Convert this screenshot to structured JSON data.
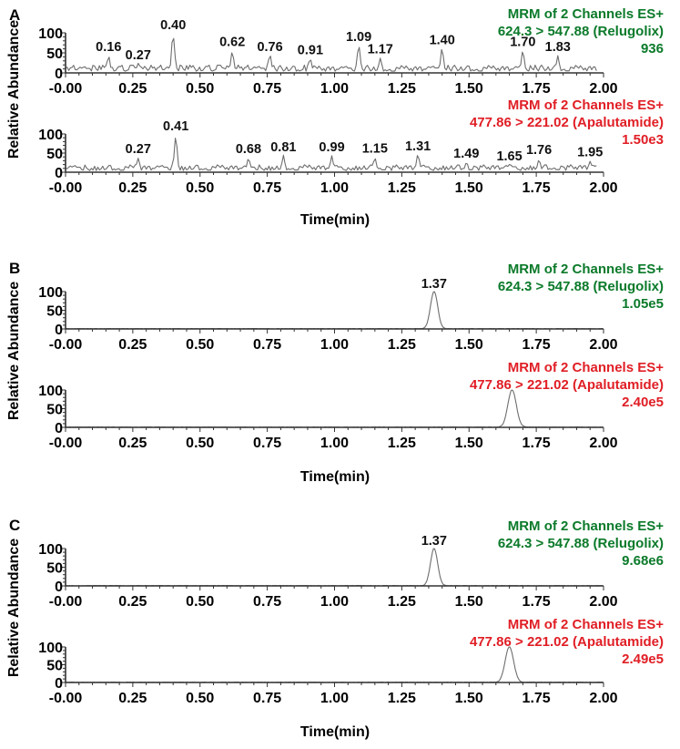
{
  "figure": {
    "y_axis_title": "Relative Abundance",
    "x_axis_title": "Time(min)",
    "x_ticks": [
      "-0.00",
      "0.25",
      "0.50",
      "0.75",
      "1.00",
      "1.25",
      "1.50",
      "1.75",
      "2.00"
    ],
    "y_ticks": [
      "100",
      "50",
      "0"
    ],
    "colors": {
      "relugolix": "#0b7a2a",
      "apalutamide": "#e01e25",
      "trace": "#6e6e6e",
      "axis": "#333333"
    }
  },
  "panels": [
    {
      "letter": "A",
      "channels": [
        {
          "header": [
            "MRM of 2 Channels ES+",
            "624.3 > 547.88 (Relugolix)",
            "936"
          ],
          "color_key": "relugolix",
          "peak_labels": [
            "0.16",
            "0.27",
            "0.40",
            "0.62",
            "0.76",
            "0.91",
            "1.09",
            "1.17",
            "1.40",
            "1.70",
            "1.83"
          ]
        },
        {
          "header": [
            "MRM of 2 Channels ES+",
            "477.86 > 221.02 (Apalutamide)",
            "1.50e3"
          ],
          "color_key": "apalutamide",
          "peak_labels": [
            "0.27",
            "0.41",
            "0.68",
            "0.81",
            "0.99",
            "1.15",
            "1.31",
            "1.49",
            "1.65",
            "1.76",
            "1.95"
          ]
        }
      ]
    },
    {
      "letter": "B",
      "channels": [
        {
          "header": [
            "MRM of 2 Channels ES+",
            "624.3 > 547.88 (Relugolix)",
            "1.05e5"
          ],
          "color_key": "relugolix",
          "peak_labels": [
            "1.37"
          ]
        },
        {
          "header": [
            "MRM of 2 Channels ES+",
            "477.86 > 221.02 (Apalutamide)",
            "2.40e5"
          ],
          "color_key": "apalutamide",
          "peak_labels": []
        }
      ]
    },
    {
      "letter": "C",
      "channels": [
        {
          "header": [
            "MRM of 2 Channels ES+",
            "624.3 > 547.88 (Relugolix)",
            "9.68e6"
          ],
          "color_key": "relugolix",
          "peak_labels": [
            "1.37"
          ]
        },
        {
          "header": [
            "MRM of 2 Channels ES+",
            "477.86 > 221.02 (Apalutamide)",
            "2.49e5"
          ],
          "color_key": "apalutamide",
          "peak_labels": []
        }
      ]
    }
  ],
  "chart_data": [
    {
      "type": "line",
      "title": "A - Relugolix channel (MRM 624.3 > 547.88), intensity 936",
      "xlabel": "Time(min)",
      "ylabel": "Relative Abundance",
      "xlim": [
        0,
        2.0
      ],
      "ylim": [
        0,
        100
      ],
      "grid": false,
      "kind": "noise baseline",
      "labeled_peaks": [
        {
          "x": 0.16,
          "y": 45
        },
        {
          "x": 0.27,
          "y": 25
        },
        {
          "x": 0.4,
          "y": 100
        },
        {
          "x": 0.62,
          "y": 58
        },
        {
          "x": 0.76,
          "y": 45
        },
        {
          "x": 0.91,
          "y": 38
        },
        {
          "x": 1.09,
          "y": 70
        },
        {
          "x": 1.17,
          "y": 40
        },
        {
          "x": 1.4,
          "y": 62
        },
        {
          "x": 1.7,
          "y": 58
        },
        {
          "x": 1.83,
          "y": 45
        }
      ]
    },
    {
      "type": "line",
      "title": "A - Apalutamide channel (MRM 477.86 > 221.02), intensity 1.50e3",
      "xlabel": "Time(min)",
      "ylabel": "Relative Abundance",
      "xlim": [
        0,
        2.0
      ],
      "ylim": [
        0,
        100
      ],
      "grid": false,
      "kind": "noise baseline",
      "labeled_peaks": [
        {
          "x": 0.27,
          "y": 40
        },
        {
          "x": 0.41,
          "y": 100
        },
        {
          "x": 0.68,
          "y": 40
        },
        {
          "x": 0.81,
          "y": 45
        },
        {
          "x": 0.99,
          "y": 45
        },
        {
          "x": 1.15,
          "y": 42
        },
        {
          "x": 1.31,
          "y": 48
        },
        {
          "x": 1.49,
          "y": 28
        },
        {
          "x": 1.65,
          "y": 22
        },
        {
          "x": 1.76,
          "y": 38
        },
        {
          "x": 1.95,
          "y": 32
        }
      ]
    },
    {
      "type": "line",
      "title": "B - Relugolix channel (MRM 624.3 > 547.88), intensity 1.05e5",
      "xlabel": "Time(min)",
      "ylabel": "Relative Abundance",
      "xlim": [
        0,
        2.0
      ],
      "ylim": [
        0,
        100
      ],
      "grid": false,
      "peaks": [
        {
          "x": 1.37,
          "y": 100,
          "width_min": 0.06
        }
      ]
    },
    {
      "type": "line",
      "title": "B - Apalutamide channel (MRM 477.86 > 221.02), intensity 2.40e5",
      "xlabel": "Time(min)",
      "ylabel": "Relative Abundance",
      "xlim": [
        0,
        2.0
      ],
      "ylim": [
        0,
        100
      ],
      "grid": false,
      "peaks": [
        {
          "x": 1.66,
          "y": 100,
          "width_min": 0.07
        }
      ]
    },
    {
      "type": "line",
      "title": "C - Relugolix channel (MRM 624.3 > 547.88), intensity 9.68e6",
      "xlabel": "Time(min)",
      "ylabel": "Relative Abundance",
      "xlim": [
        0,
        2.0
      ],
      "ylim": [
        0,
        100
      ],
      "grid": false,
      "peaks": [
        {
          "x": 1.37,
          "y": 100,
          "width_min": 0.06
        }
      ]
    },
    {
      "type": "line",
      "title": "C - Apalutamide channel (MRM 477.86 > 221.02), intensity 2.49e5",
      "xlabel": "Time(min)",
      "ylabel": "Relative Abundance",
      "xlim": [
        0,
        2.0
      ],
      "ylim": [
        0,
        100
      ],
      "grid": false,
      "peaks": [
        {
          "x": 1.65,
          "y": 100,
          "width_min": 0.07
        }
      ]
    }
  ]
}
